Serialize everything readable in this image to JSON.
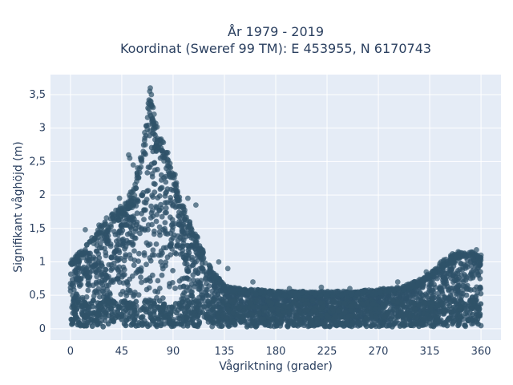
{
  "chart_data": {
    "type": "scatter",
    "title_line1": "År 1979 - 2019",
    "title_line2": "Koordinat (Sweref 99 TM): E 453955, N 6170743",
    "xlabel": "Vågriktning (grader)",
    "ylabel": "Signifikant våghöjd (m)",
    "xlim": [
      -17.5,
      377.5
    ],
    "ylim": [
      -0.17,
      3.8
    ],
    "x_ticks": [
      0,
      45,
      90,
      135,
      180,
      225,
      270,
      315,
      360
    ],
    "x_tick_labels": [
      "0",
      "45",
      "90",
      "135",
      "180",
      "225",
      "270",
      "315",
      "360"
    ],
    "y_ticks": [
      0,
      0.5,
      1,
      1.5,
      2,
      2.5,
      3,
      3.5
    ],
    "y_tick_labels": [
      "0",
      "0,5",
      "1",
      "1,5",
      "2",
      "2,5",
      "3",
      "3,5"
    ],
    "grid": true,
    "marker_color": "#2f5269",
    "background_color": "#e5ecf6",
    "upper_envelope": {
      "x": [
        0,
        10,
        20,
        30,
        40,
        50,
        55,
        60,
        65,
        70,
        75,
        80,
        85,
        90,
        95,
        100,
        105,
        110,
        115,
        120,
        125,
        130,
        135,
        145,
        160,
        180,
        200,
        225,
        250,
        270,
        290,
        300,
        310,
        320,
        330,
        340,
        350,
        360
      ],
      "y": [
        1.0,
        1.15,
        1.4,
        1.6,
        1.75,
        1.9,
        2.1,
        2.5,
        2.9,
        3.6,
        3.0,
        2.8,
        2.6,
        2.4,
        2.0,
        1.75,
        1.55,
        1.4,
        1.2,
        1.0,
        0.85,
        0.75,
        0.65,
        0.6,
        0.58,
        0.55,
        0.55,
        0.55,
        0.55,
        0.58,
        0.62,
        0.68,
        0.75,
        0.9,
        1.05,
        1.12,
        1.15,
        1.05
      ]
    },
    "outliers": [
      {
        "x": 70,
        "y": 3.6
      },
      {
        "x": 69.5,
        "y": 3.55
      },
      {
        "x": 71,
        "y": 3.5
      },
      {
        "x": 70.5,
        "y": 3.4
      },
      {
        "x": 68,
        "y": 3.3
      },
      {
        "x": 51,
        "y": 2.6
      },
      {
        "x": 52,
        "y": 2.55
      },
      {
        "x": 55,
        "y": 2.45
      },
      {
        "x": 43,
        "y": 1.95
      },
      {
        "x": 42,
        "y": 1.75
      },
      {
        "x": 103,
        "y": 1.95
      },
      {
        "x": 110,
        "y": 1.85
      },
      {
        "x": 130,
        "y": 1.0
      },
      {
        "x": 138,
        "y": 0.9
      },
      {
        "x": 160,
        "y": 0.7
      },
      {
        "x": 192,
        "y": 0.6
      },
      {
        "x": 220,
        "y": 0.62
      },
      {
        "x": 245,
        "y": 0.6
      },
      {
        "x": 287,
        "y": 0.7
      },
      {
        "x": 300,
        "y": 0.65
      },
      {
        "x": 312,
        "y": 0.85
      },
      {
        "x": 325,
        "y": 1.0
      },
      {
        "x": 335,
        "y": 1.12
      },
      {
        "x": 340,
        "y": 1.15
      },
      {
        "x": 356,
        "y": 1.18
      },
      {
        "x": 360,
        "y": 1.1
      },
      {
        "x": 5,
        "y": 1.05
      },
      {
        "x": 13,
        "y": 1.48
      },
      {
        "x": 25,
        "y": 1.55
      }
    ]
  }
}
